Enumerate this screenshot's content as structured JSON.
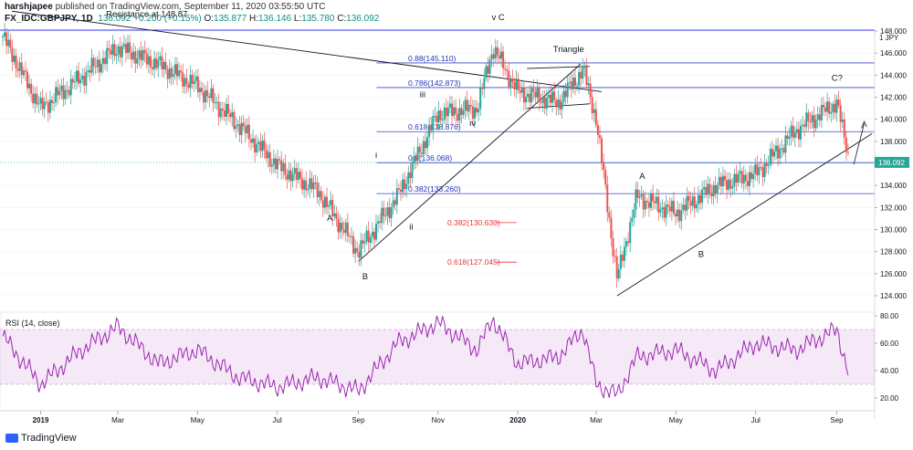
{
  "header": {
    "author": "harshjapee",
    "published_text": "published on TradingView.com, September 11, 2020 03:55:50 UTC",
    "symbol": "FX_IDC:GBPJPY, 1D",
    "last": "136.092",
    "change": "+0.200 (+0.15%)",
    "o_label": "O:",
    "open": "135.877",
    "h_label": "H:",
    "high": "136.146",
    "l_label": "L:",
    "low": "135.780",
    "c_label": "C:",
    "close": "136.092"
  },
  "footer": {
    "brand": "TradingView"
  },
  "chart_data": [
    {
      "type": "candlestick",
      "title": "FX_IDC:GBPJPY, 1D",
      "y_unit_label": "JPY",
      "ylim": [
        123,
        151
      ],
      "y_ticks": [
        124,
        126,
        128,
        130,
        132,
        134,
        136,
        138,
        140,
        142,
        144,
        146,
        148
      ],
      "y_top_label": "1",
      "x_ticks": [
        "2019",
        "Mar",
        "May",
        "Jul",
        "Sep",
        "Nov",
        "2020",
        "Mar",
        "May",
        "Jul",
        "Sep"
      ],
      "x_dates": [
        "2018-12-03",
        "2019-01-01",
        "2019-02-01",
        "2019-03-01",
        "2019-04-01",
        "2019-05-01",
        "2019-06-01",
        "2019-07-01",
        "2019-08-01",
        "2019-09-01",
        "2019-10-01",
        "2019-11-01",
        "2019-12-01",
        "2019-12-13",
        "2020-01-01",
        "2020-02-01",
        "2020-02-20",
        "2020-03-01",
        "2020-03-17",
        "2020-04-01",
        "2020-05-01",
        "2020-06-01",
        "2020-07-01",
        "2020-08-01",
        "2020-09-01",
        "2020-09-11"
      ],
      "close_series": [
        147.5,
        141.0,
        143.8,
        146.5,
        145.0,
        143.0,
        139.5,
        135.8,
        133.5,
        128.0,
        133.0,
        140.5,
        141.0,
        146.5,
        142.5,
        141.5,
        144.5,
        140.0,
        125.5,
        133.0,
        131.5,
        134.0,
        135.0,
        139.0,
        141.5,
        136.092
      ],
      "last_price": "136.092",
      "levels": [
        {
          "label": "0.88(145.110)",
          "value": 145.11
        },
        {
          "label": "0.786(142.873)",
          "value": 142.873
        },
        {
          "label": "0.618(138.876)",
          "value": 138.876
        },
        {
          "label": "0.5(136.068)",
          "value": 136.068
        },
        {
          "label": "0.382(133.260)",
          "value": 133.26
        }
      ],
      "red_levels": [
        {
          "label": "0.382(130.630)",
          "value": 130.63
        },
        {
          "label": "0.618(127.045)",
          "value": 127.045
        }
      ],
      "annotations": [
        {
          "text": "Resistance at 148.87",
          "date": "2019-02-20",
          "value": 149.3
        },
        {
          "text": "v C",
          "date": "2019-12-12",
          "value": 149.0
        },
        {
          "text": "Triangle",
          "date": "2020-01-28",
          "value": 146.1
        },
        {
          "text": "iii",
          "date": "2019-10-18",
          "value": 142.0
        },
        {
          "text": "iv",
          "date": "2019-11-25",
          "value": 139.4
        },
        {
          "text": "i",
          "date": "2019-09-14",
          "value": 136.5
        },
        {
          "text": "ii",
          "date": "2019-10-10",
          "value": 130.0
        },
        {
          "text": "A",
          "date": "2019-08-08",
          "value": 130.8
        },
        {
          "text": "B",
          "date": "2019-09-04",
          "value": 125.5
        },
        {
          "text": "A",
          "date": "2020-04-03",
          "value": 134.6
        },
        {
          "text": "B",
          "date": "2020-05-18",
          "value": 127.5
        },
        {
          "text": "C?",
          "date": "2020-08-28",
          "value": 143.5
        }
      ]
    },
    {
      "type": "line",
      "title": "RSI (14, close)",
      "ylim": [
        15,
        83
      ],
      "y_ticks": [
        20,
        40,
        60,
        80
      ],
      "y_tick_labels": [
        "20.00",
        "40.00",
        "60.00",
        "80.00"
      ],
      "bands": [
        30,
        70
      ],
      "x_dates": [
        "2018-12-03",
        "2019-01-01",
        "2019-02-01",
        "2019-03-01",
        "2019-04-01",
        "2019-05-01",
        "2019-06-01",
        "2019-07-01",
        "2019-08-01",
        "2019-09-01",
        "2019-10-01",
        "2019-11-01",
        "2019-12-01",
        "2019-12-13",
        "2020-01-01",
        "2020-02-01",
        "2020-02-20",
        "2020-03-01",
        "2020-03-17",
        "2020-04-01",
        "2020-05-01",
        "2020-06-01",
        "2020-07-01",
        "2020-08-01",
        "2020-09-01",
        "2020-09-11"
      ],
      "values": [
        65,
        30,
        55,
        72,
        45,
        55,
        35,
        28,
        35,
        25,
        60,
        75,
        55,
        78,
        45,
        50,
        70,
        30,
        22,
        50,
        55,
        40,
        60,
        55,
        70,
        35
      ]
    }
  ]
}
